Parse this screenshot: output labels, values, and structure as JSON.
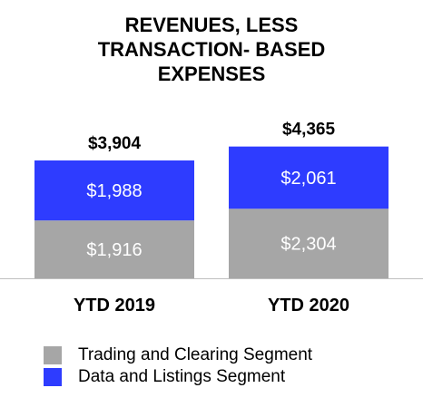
{
  "chart_data": {
    "type": "bar",
    "stacked": true,
    "title_lines": [
      "REVENUES, LESS",
      "TRANSACTION- BASED",
      "EXPENSES"
    ],
    "categories": [
      "YTD 2019",
      "YTD 2020"
    ],
    "totals": [
      "$3,904",
      "$4,365"
    ],
    "total_values": [
      3904,
      4365
    ],
    "series": [
      {
        "name": "Trading and Clearing Segment",
        "values": [
          1916,
          2304
        ],
        "labels": [
          "$1,916",
          "$2,304"
        ],
        "color": "#a6a6a6"
      },
      {
        "name": "Data and Listings Segment",
        "values": [
          1988,
          2061
        ],
        "labels": [
          "$1,988",
          "$2,061"
        ],
        "color": "#2e3cff"
      }
    ],
    "grid": false,
    "legend_position": "bottom-left"
  }
}
